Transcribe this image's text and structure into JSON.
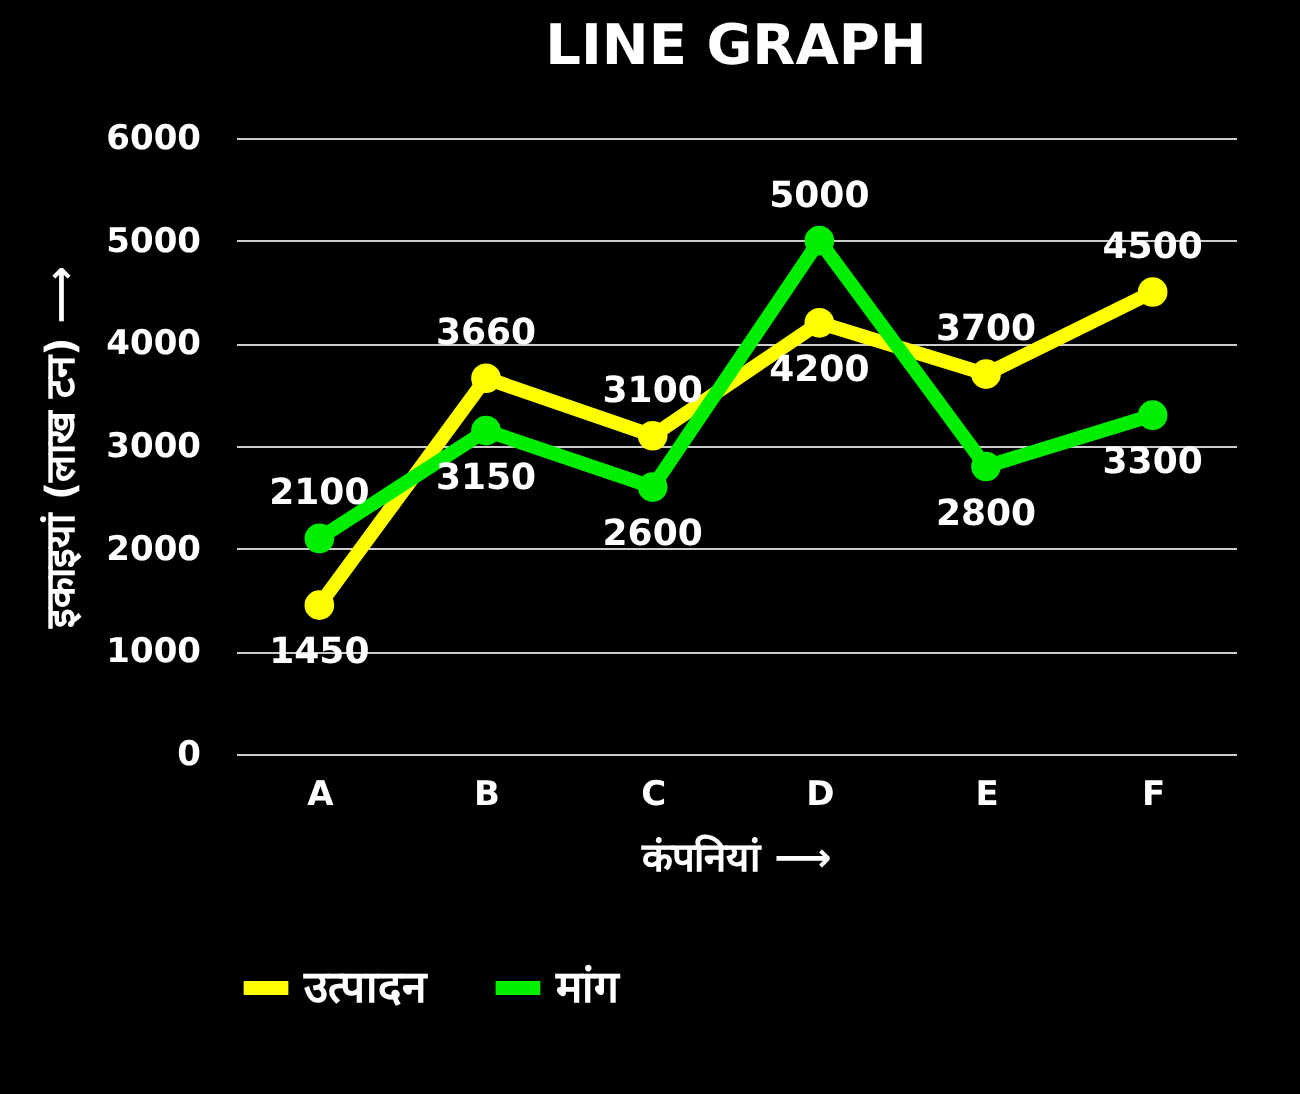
{
  "chart_data": {
    "type": "line",
    "title": "LINE GRAPH",
    "xlabel": "कंपनियां ⟶",
    "ylabel": "इकाइयां (लाख टन) ⟶",
    "categories": [
      "A",
      "B",
      "C",
      "D",
      "E",
      "F"
    ],
    "series": [
      {
        "name": "उत्पादन",
        "color": "#ffff00",
        "values": [
          1450,
          3660,
          3100,
          4200,
          3700,
          4500
        ]
      },
      {
        "name": "मांग",
        "color": "#00ee00",
        "values": [
          2100,
          3150,
          2600,
          5000,
          2800,
          3300
        ]
      }
    ],
    "ylim": [
      0,
      6000
    ],
    "yticks": [
      0,
      1000,
      2000,
      3000,
      4000,
      5000,
      6000
    ],
    "grid": "y",
    "legend": "bottom",
    "marker": "circle",
    "line_style": "solid",
    "data_labels": true
  }
}
